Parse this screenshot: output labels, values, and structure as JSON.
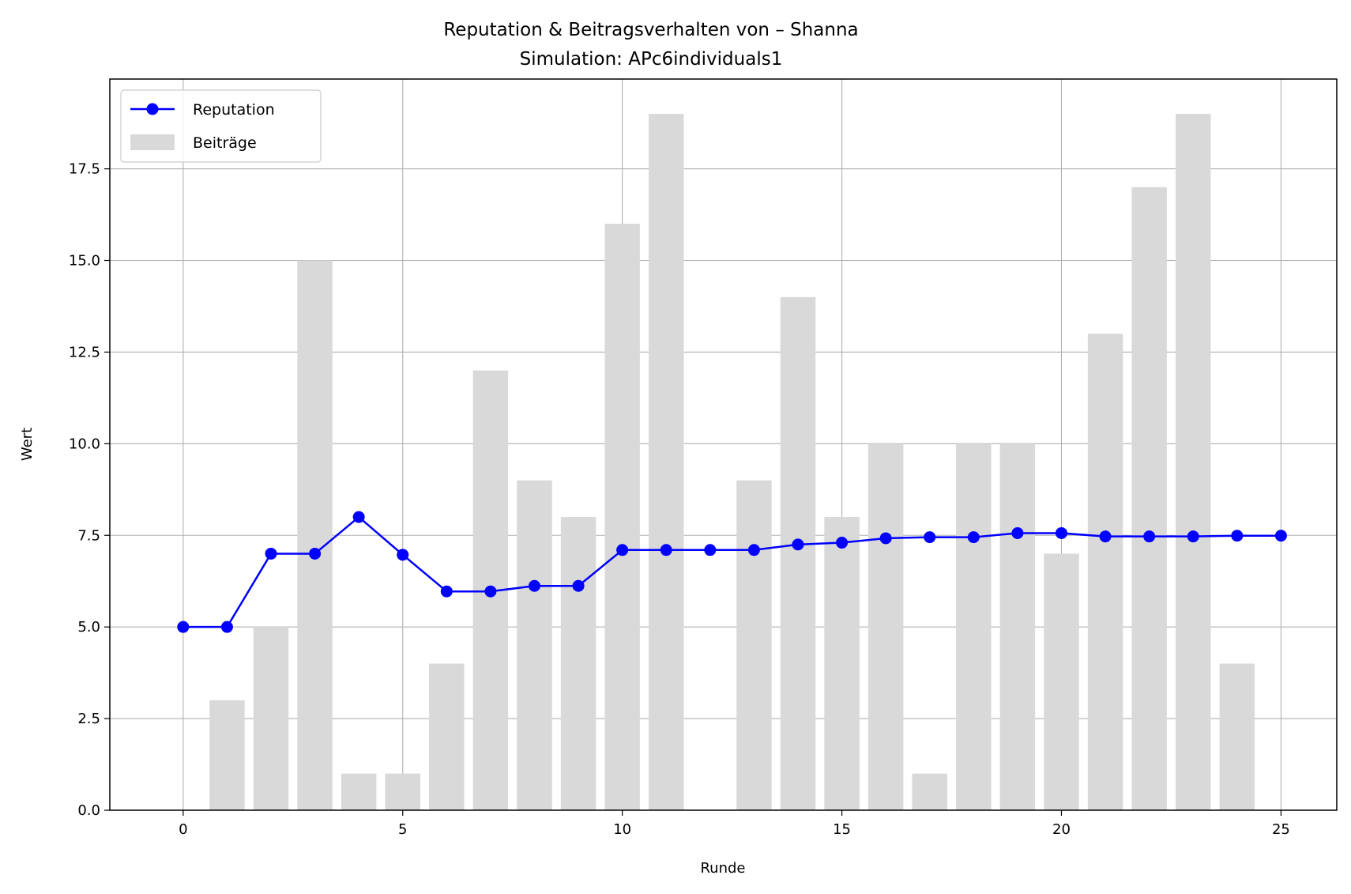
{
  "chart_data": {
    "type": "bar+line",
    "title": "Reputation & Beitragsverhalten von – Shanna",
    "subtitle": "Simulation: APc6individuals1",
    "xlabel": "Runde",
    "ylabel": "Wert",
    "xlim": [
      -1.67,
      26.27
    ],
    "ylim": [
      0,
      19.95
    ],
    "x_ticks": [
      0,
      5,
      10,
      15,
      20,
      25
    ],
    "y_ticks": [
      0.0,
      2.5,
      5.0,
      7.5,
      10.0,
      12.5,
      15.0,
      17.5
    ],
    "grid": true,
    "legend_position": "top-left",
    "series": [
      {
        "name": "Reputation",
        "type": "line",
        "color": "#0000ff",
        "marker": "circle",
        "x": [
          0,
          1,
          2,
          3,
          4,
          5,
          6,
          7,
          8,
          9,
          10,
          11,
          12,
          13,
          14,
          15,
          16,
          17,
          18,
          19,
          20,
          21,
          22,
          23,
          24,
          25
        ],
        "values": [
          5.0,
          5.0,
          7.0,
          7.0,
          8.0,
          6.97,
          5.97,
          5.97,
          6.12,
          6.12,
          7.1,
          7.1,
          7.1,
          7.1,
          7.25,
          7.3,
          7.42,
          7.45,
          7.45,
          7.56,
          7.56,
          7.47,
          7.47,
          7.47,
          7.49,
          7.49
        ]
      },
      {
        "name": "Beiträge",
        "type": "bar",
        "color": "#d9d9d9",
        "x": [
          1,
          2,
          3,
          4,
          5,
          6,
          7,
          8,
          9,
          10,
          11,
          12,
          13,
          14,
          15,
          16,
          17,
          18,
          19,
          20,
          21,
          22,
          23,
          24
        ],
        "values": [
          3,
          5,
          15,
          1,
          1,
          4,
          12,
          9,
          8,
          16,
          19,
          0,
          9,
          14,
          8,
          10,
          1,
          10,
          10,
          7,
          13,
          17,
          19,
          4
        ]
      }
    ]
  }
}
